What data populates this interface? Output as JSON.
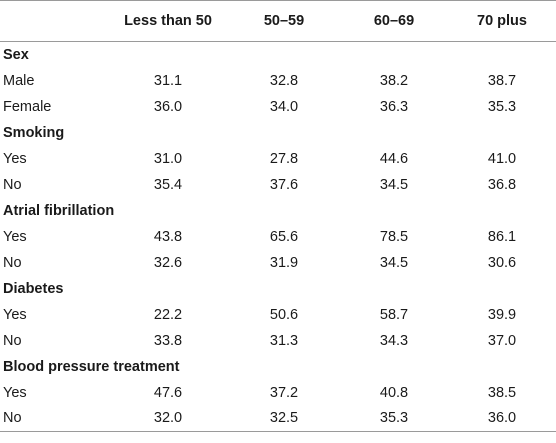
{
  "table": {
    "headers": [
      "",
      "Less than 50",
      "50–59",
      "60–69",
      "70 plus"
    ],
    "sections": [
      {
        "title": "Sex",
        "rows": [
          {
            "label": "Male",
            "values": [
              "31.1",
              "32.8",
              "38.2",
              "38.7"
            ]
          },
          {
            "label": "Female",
            "values": [
              "36.0",
              "34.0",
              "36.3",
              "35.3"
            ]
          }
        ]
      },
      {
        "title": "Smoking",
        "rows": [
          {
            "label": "Yes",
            "values": [
              "31.0",
              "27.8",
              "44.6",
              "41.0"
            ]
          },
          {
            "label": "No",
            "values": [
              "35.4",
              "37.6",
              "34.5",
              "36.8"
            ]
          }
        ]
      },
      {
        "title": "Atrial fibrillation",
        "rows": [
          {
            "label": "Yes",
            "values": [
              "43.8",
              "65.6",
              "78.5",
              "86.1"
            ]
          },
          {
            "label": "No",
            "values": [
              "32.6",
              "31.9",
              "34.5",
              "30.6"
            ]
          }
        ]
      },
      {
        "title": "Diabetes",
        "rows": [
          {
            "label": "Yes",
            "values": [
              "22.2",
              "50.6",
              "58.7",
              "39.9"
            ]
          },
          {
            "label": "No",
            "values": [
              "33.8",
              "31.3",
              "34.3",
              "37.0"
            ]
          }
        ]
      },
      {
        "title": "Blood pressure treatment",
        "rows": [
          {
            "label": "Yes",
            "values": [
              "47.6",
              "37.2",
              "40.8",
              "38.5"
            ]
          },
          {
            "label": "No",
            "values": [
              "32.0",
              "32.5",
              "35.3",
              "36.0"
            ]
          }
        ]
      }
    ]
  }
}
